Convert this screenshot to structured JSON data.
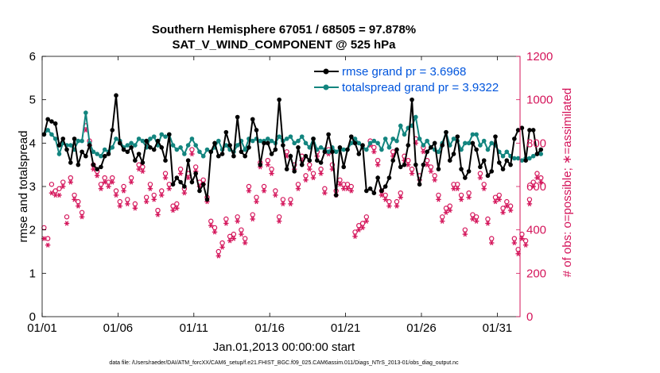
{
  "chart_data": {
    "type": "line",
    "title_line1": "Southern Hemisphere 67051 / 68505 = 97.878%",
    "title_line2": "SAT_V_WIND_COMPONENT @ 525 hPa",
    "xlabel": "Jan.01,2013 00:00:00 start",
    "ylabel_left": "rmse and totalspread",
    "ylabel_right": "# of obs: o=possible; ∗=assimilated",
    "footnote": "data file: /Users/raeder/DAI/ATM_forcXX/CAM6_setup/f.e21.FHIST_BGC.f09_025.CAM6assim.011/Diags_NTrS_2013-01/obs_diag_output.nc",
    "x_range_days": [
      0,
      31.5
    ],
    "xticks": [
      {
        "day": 0,
        "label": "01/01"
      },
      {
        "day": 5,
        "label": "01/06"
      },
      {
        "day": 10,
        "label": "01/11"
      },
      {
        "day": 15,
        "label": "01/16"
      },
      {
        "day": 20,
        "label": "01/21"
      },
      {
        "day": 25,
        "label": "01/26"
      },
      {
        "day": 30,
        "label": "01/31"
      }
    ],
    "ylim_left": [
      0,
      6
    ],
    "yticks_left": [
      "0",
      "1",
      "2",
      "3",
      "4",
      "5",
      "6"
    ],
    "ylim_right": [
      0,
      1200
    ],
    "yticks_right": [
      "0",
      "200",
      "400",
      "600",
      "800",
      "1000",
      "1200"
    ],
    "colors": {
      "rmse": "#000000",
      "spread": "#13857f",
      "obs": "#d4145a",
      "legend_text": "#0055dd"
    },
    "series": [
      {
        "name": "rmse grand pr = 3.6968",
        "key": "rmse",
        "values": [
          4.2,
          4.55,
          4.5,
          4.45,
          3.95,
          4.1,
          3.85,
          3.55,
          4.1,
          3.5,
          3.8,
          3.7,
          3.95,
          3.5,
          3.4,
          3.45,
          3.7,
          3.75,
          4.3,
          5.1,
          4.0,
          3.85,
          3.8,
          3.9,
          3.6,
          3.75,
          3.55,
          4.05,
          3.9,
          3.85,
          4.05,
          3.9,
          3.6,
          4.2,
          3.05,
          3.2,
          3.1,
          3.0,
          3.6,
          3.1,
          3.3,
          2.9,
          3.05,
          2.7,
          3.8,
          4.0,
          3.7,
          3.75,
          4.25,
          3.95,
          3.7,
          4.6,
          3.8,
          3.7,
          3.9,
          4.55,
          4.3,
          3.5,
          4.0,
          4.0,
          3.75,
          3.85,
          5.0,
          3.95,
          3.4,
          3.7,
          3.35,
          3.9,
          3.5,
          3.7,
          3.6,
          4.1,
          3.6,
          3.55,
          3.8,
          4.2,
          3.8,
          2.8,
          3.9,
          3.45,
          3.85,
          4.15,
          4.0,
          3.75,
          3.95,
          2.9,
          2.95,
          2.85,
          3.2,
          2.9,
          3.0,
          3.2,
          3.6,
          3.85,
          3.45,
          3.5,
          3.95,
          5.0,
          3.5,
          3.05,
          3.5,
          3.8,
          3.9,
          4.0,
          3.4,
          3.95,
          4.25,
          3.6,
          3.75,
          4.15,
          3.4,
          3.2,
          3.35,
          4.0,
          3.85,
          3.45,
          3.6,
          3.25,
          3.35,
          4.15,
          3.55,
          3.4,
          3.6,
          3.5,
          4.1,
          4.3,
          4.35,
          3.6,
          4.3,
          4.3,
          3.75,
          3.85
        ],
        "obs_count": [
          410,
          360,
          610,
          580,
          590,
          620,
          460,
          640,
          560,
          530,
          480,
          880,
          810,
          700,
          670,
          610,
          640,
          620,
          640,
          580,
          530,
          600,
          540,
          640,
          520,
          700,
          690,
          550,
          610,
          560,
          490,
          580,
          660,
          610,
          510,
          520,
          680,
          590,
          660,
          770,
          690,
          620,
          630,
          550,
          440,
          410,
          300,
          340,
          450,
          370,
          380,
          460,
          400,
          360,
          600,
          470,
          550,
          710,
          600,
          720,
          680,
          580,
          460,
          540,
          760,
          540,
          700,
          610,
          740,
          650,
          700,
          660,
          760,
          680,
          590,
          770,
          700,
          580,
          630,
          610,
          610,
          600,
          390,
          420,
          430,
          460,
          810,
          780,
          720,
          580,
          560,
          530,
          760,
          530,
          570,
          740,
          720,
          680,
          820,
          650,
          780,
          720,
          690,
          650,
          560,
          460,
          500,
          510,
          610,
          610,
          560,
          400,
          570,
          470,
          460,
          660,
          610,
          450,
          360,
          550,
          560,
          500,
          530,
          510,
          360,
          310,
          380,
          350,
          540,
          620,
          660,
          640
        ],
        "assim_count": [
          360,
          330,
          570,
          560,
          560,
          600,
          430,
          620,
          540,
          510,
          460,
          860,
          790,
          680,
          650,
          590,
          620,
          600,
          620,
          560,
          510,
          580,
          520,
          620,
          500,
          680,
          670,
          530,
          590,
          540,
          470,
          560,
          640,
          590,
          490,
          500,
          660,
          570,
          640,
          750,
          670,
          600,
          610,
          530,
          420,
          390,
          280,
          320,
          430,
          350,
          360,
          440,
          380,
          340,
          580,
          450,
          530,
          690,
          580,
          700,
          660,
          560,
          440,
          520,
          740,
          520,
          680,
          590,
          720,
          630,
          680,
          640,
          740,
          660,
          570,
          750,
          680,
          560,
          610,
          590,
          590,
          580,
          370,
          400,
          410,
          440,
          790,
          760,
          700,
          560,
          540,
          510,
          740,
          510,
          550,
          720,
          700,
          660,
          800,
          630,
          760,
          700,
          670,
          630,
          540,
          440,
          480,
          490,
          590,
          590,
          540,
          380,
          550,
          450,
          440,
          640,
          590,
          430,
          340,
          530,
          540,
          480,
          510,
          490,
          340,
          290,
          360,
          330,
          520,
          600,
          640,
          620
        ]
      },
      {
        "name": "totalspread grand pr = 3.9322",
        "key": "spread",
        "values": [
          4.2,
          4.3,
          4.2,
          4.1,
          3.75,
          4.0,
          3.95,
          3.95,
          3.85,
          4.05,
          4.05,
          4.7,
          4.0,
          3.8,
          3.75,
          3.7,
          3.85,
          3.8,
          3.9,
          4.1,
          4.05,
          3.9,
          3.95,
          4.0,
          3.95,
          4.1,
          4.05,
          3.9,
          4.1,
          4.15,
          3.95,
          4.2,
          4.15,
          4.2,
          3.95,
          3.85,
          3.9,
          3.75,
          3.95,
          4.1,
          3.95,
          3.8,
          3.7,
          3.85,
          3.8,
          3.9,
          4.05,
          3.85,
          3.95,
          3.85,
          3.8,
          3.95,
          4.05,
          3.85,
          4.1,
          4.05,
          4.1,
          4.05,
          4.05,
          4.1,
          4.05,
          4.0,
          4.15,
          4.05,
          4.1,
          4.15,
          4.0,
          4.05,
          4.15,
          4.0,
          3.9,
          4.1,
          3.85,
          3.9,
          3.85,
          3.8,
          3.9,
          3.8,
          3.85,
          3.85,
          3.85,
          4.0,
          4.1,
          4.0,
          3.9,
          3.85,
          4.0,
          4.05,
          4.0,
          3.85,
          4.1,
          3.9,
          4.1,
          4.05,
          4.4,
          4.2,
          4.35,
          4.4,
          4.6,
          4.1,
          3.95,
          4.05,
          3.9,
          3.85,
          3.8,
          4.0,
          4.25,
          3.95,
          4.1,
          4.05,
          3.85,
          4.0,
          4.0,
          4.2,
          4.2,
          3.95,
          4.05,
          3.85,
          4.0,
          3.95,
          3.8,
          3.7,
          3.8,
          3.7,
          3.65,
          3.65,
          3.6,
          3.65,
          3.65,
          3.7,
          3.75,
          3.75
        ]
      }
    ]
  }
}
